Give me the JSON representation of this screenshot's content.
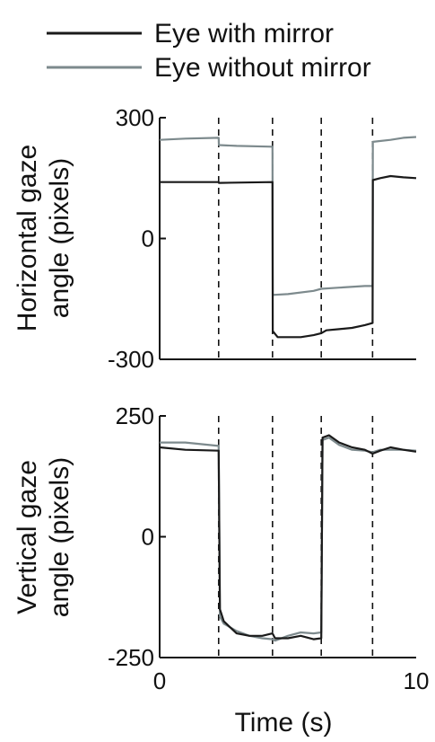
{
  "legend": {
    "items": [
      {
        "label": "Eye with mirror",
        "color": "#1a1a1a"
      },
      {
        "label": "Eye without mirror",
        "color": "#7d8a8d"
      }
    ]
  },
  "chart_data": [
    {
      "type": "line",
      "panel": "top",
      "xlabel": "",
      "ylabel": [
        "Horizontal gaze",
        "angle (pixels)"
      ],
      "xlim": [
        0,
        10
      ],
      "ylim": [
        -300,
        300
      ],
      "y_ticks": [
        "300",
        "0",
        "-300"
      ],
      "x_ticks": [],
      "event_lines_x": [
        2.3,
        4.4,
        6.3,
        8.3
      ],
      "series": [
        {
          "name": "Eye with mirror",
          "color": "#1a1a1a",
          "x": [
            0,
            2.3,
            2.31,
            4.4,
            4.41,
            4.6,
            5.0,
            5.5,
            6.0,
            6.3,
            6.5,
            7.0,
            7.5,
            8.0,
            8.3,
            8.31,
            8.6,
            9.0,
            9.5,
            10
          ],
          "y": [
            140,
            140,
            138,
            140,
            -230,
            -245,
            -245,
            -245,
            -240,
            -235,
            -228,
            -225,
            -222,
            -215,
            -210,
            145,
            150,
            155,
            152,
            150
          ]
        },
        {
          "name": "Eye without mirror",
          "color": "#7d8a8d",
          "x": [
            0,
            1.0,
            2.3,
            2.31,
            3.0,
            4.4,
            4.41,
            5.0,
            6.0,
            6.3,
            7.0,
            8.0,
            8.3,
            8.31,
            9.0,
            9.5,
            10
          ],
          "y": [
            245,
            248,
            250,
            232,
            230,
            228,
            -140,
            -138,
            -130,
            -125,
            -122,
            -118,
            -118,
            240,
            245,
            250,
            252
          ]
        }
      ]
    },
    {
      "type": "line",
      "panel": "bottom",
      "xlabel": "Time (s)",
      "ylabel": [
        "Vertical gaze",
        "angle (pixels)"
      ],
      "xlim": [
        0,
        10
      ],
      "ylim": [
        -250,
        250
      ],
      "y_ticks": [
        "250",
        "0",
        "-250"
      ],
      "x_ticks": [
        "0",
        "10"
      ],
      "event_lines_x": [
        2.3,
        4.4,
        6.3,
        8.3
      ],
      "series": [
        {
          "name": "Eye with mirror",
          "color": "#1a1a1a",
          "x": [
            0,
            1.0,
            2.3,
            2.35,
            2.5,
            3.0,
            3.5,
            4.0,
            4.4,
            4.5,
            5.0,
            5.5,
            6.0,
            6.3,
            6.35,
            6.6,
            7.0,
            7.5,
            8.0,
            8.3,
            8.6,
            9.0,
            9.5,
            10
          ],
          "y": [
            185,
            180,
            178,
            -150,
            -175,
            -200,
            -205,
            -205,
            -200,
            -210,
            -210,
            -205,
            -212,
            -210,
            205,
            210,
            195,
            185,
            180,
            172,
            178,
            185,
            180,
            176
          ]
        },
        {
          "name": "Eye without mirror",
          "color": "#7d8a8d",
          "x": [
            0,
            1.0,
            2.3,
            2.35,
            2.5,
            3.0,
            3.5,
            4.0,
            4.4,
            4.5,
            5.0,
            5.5,
            6.0,
            6.3,
            6.35,
            6.6,
            7.0,
            7.5,
            8.0,
            8.3,
            8.6,
            9.0,
            9.5,
            10
          ],
          "y": [
            195,
            195,
            188,
            -165,
            -180,
            -195,
            -205,
            -210,
            -212,
            -215,
            -205,
            -198,
            -200,
            -198,
            200,
            205,
            190,
            180,
            178,
            175,
            180,
            180,
            180,
            178
          ]
        }
      ]
    }
  ]
}
